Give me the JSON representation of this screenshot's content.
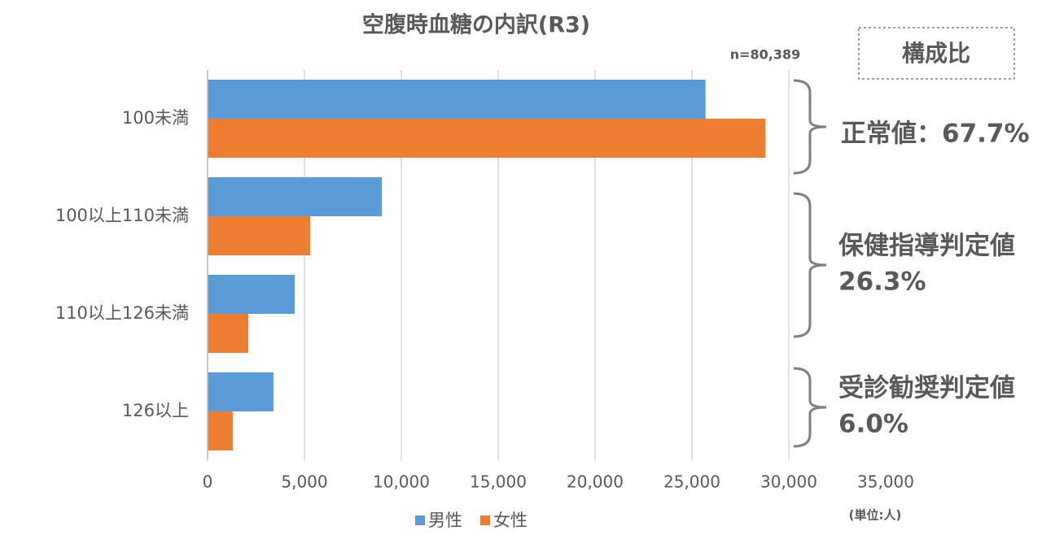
{
  "chart_data": {
    "type": "hbar",
    "title": "空腹時血糖の内訳(R3)",
    "categories": [
      "100未満",
      "100以上110未満",
      "110以上126未満",
      "126以上"
    ],
    "series": [
      {
        "name": "男性",
        "color": "#5b9bd5",
        "values": [
          25700,
          9000,
          4500,
          3400
        ]
      },
      {
        "name": "女性",
        "color": "#ed7d31",
        "values": [
          28800,
          5300,
          2100,
          1300
        ]
      }
    ],
    "xlim": [
      0,
      35000
    ],
    "xticks": [
      0,
      {
        "value": 5000,
        "label": "5,000"
      },
      {
        "value": 10000,
        "label": "10,000"
      },
      {
        "value": 15000,
        "label": "15,000"
      },
      {
        "value": 20000,
        "label": "20,000"
      },
      {
        "value": 25000,
        "label": "25,000"
      },
      {
        "value": 30000,
        "label": "30,000"
      },
      {
        "value": 35000,
        "label": "35,000"
      }
    ],
    "grid": true,
    "legend": "bottom",
    "annotations": {
      "n": "n=80,389",
      "unit": "(単位:人)",
      "ratio_header": "構成比",
      "groups": [
        [
          "正常値：67.7%"
        ],
        [
          "保健指導判定値",
          "26.3%"
        ],
        [
          "受診勧奨判定値",
          "6.0%"
        ]
      ]
    }
  }
}
